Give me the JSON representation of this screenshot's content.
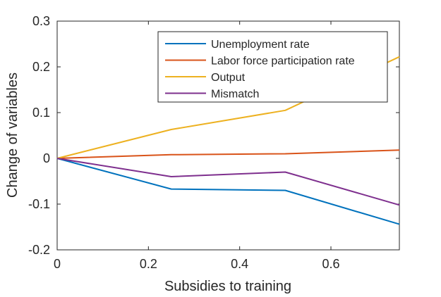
{
  "chart_data": {
    "type": "line",
    "xlabel": "Subsidies to training",
    "ylabel": "Change of variables",
    "xlim": [
      0,
      0.75
    ],
    "ylim": [
      -0.2,
      0.3
    ],
    "x_ticks": [
      0,
      0.2,
      0.4,
      0.6
    ],
    "x_tick_labels": [
      "0",
      "0.2",
      "0.4",
      "0.6"
    ],
    "y_ticks": [
      -0.2,
      -0.1,
      0,
      0.1,
      0.2,
      0.3
    ],
    "y_tick_labels": [
      "-0.2",
      "-0.1",
      "0",
      "0.1",
      "0.2",
      "0.3"
    ],
    "grid": false,
    "legend_position": "top-right",
    "x": [
      0,
      0.25,
      0.5,
      0.75
    ],
    "series": [
      {
        "name": "Unemployment rate",
        "color": "#0072BD",
        "values": [
          0,
          -0.067,
          -0.07,
          -0.144
        ]
      },
      {
        "name": "Labor force participation rate",
        "color": "#D95319",
        "values": [
          0,
          0.008,
          0.01,
          0.018
        ]
      },
      {
        "name": "Output",
        "color": "#EDB120",
        "values": [
          0,
          0.063,
          0.105,
          0.222
        ]
      },
      {
        "name": "Mismatch",
        "color": "#7E2F8E",
        "values": [
          0,
          -0.04,
          -0.03,
          -0.102
        ]
      }
    ]
  }
}
